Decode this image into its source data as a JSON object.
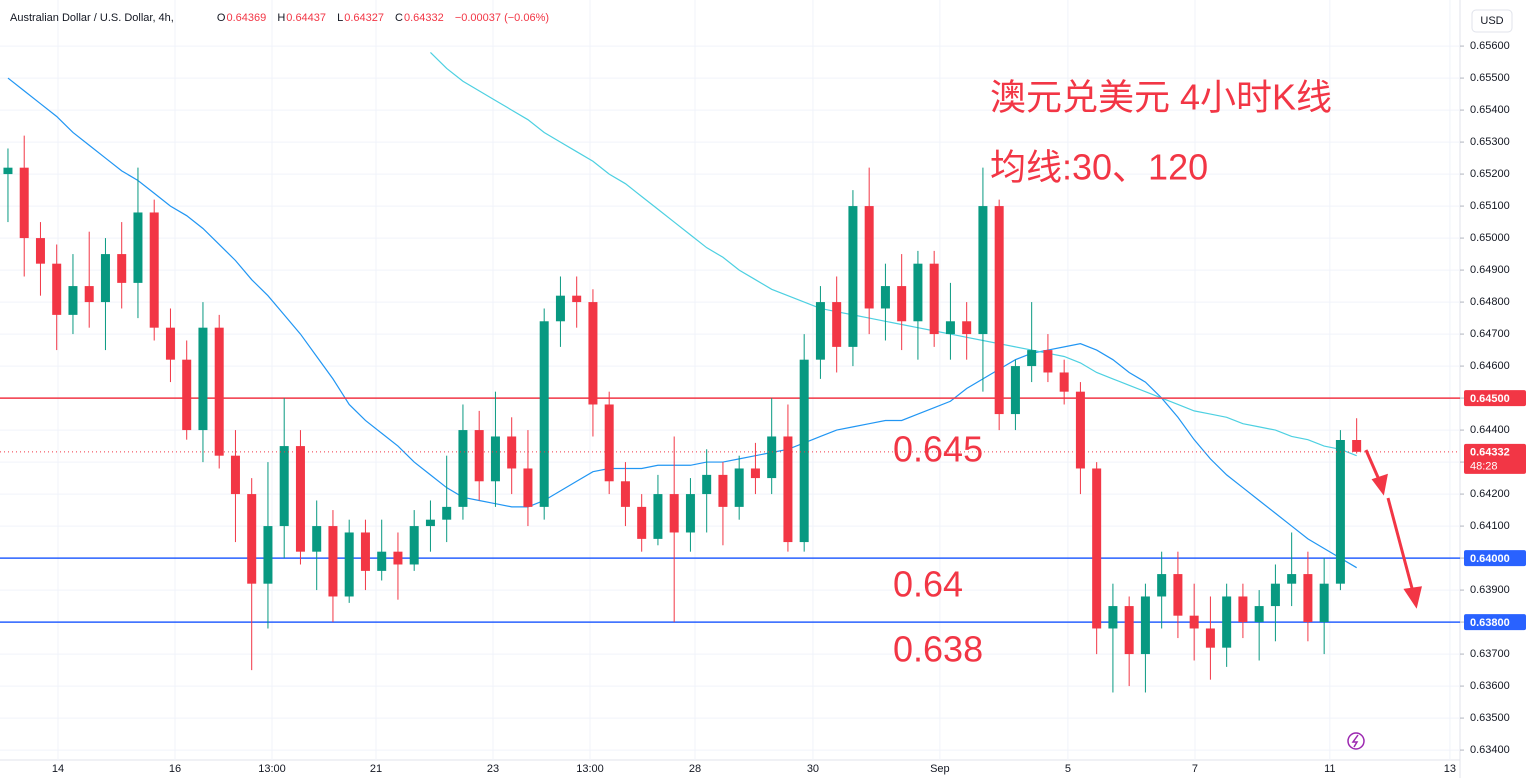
{
  "chart_data": {
    "type": "candlestick",
    "title": "Australian Dollar / U.S. Dollar, 4h,",
    "currency": "USD",
    "header": {
      "open_label": "O",
      "open": "0.64369",
      "high_label": "H",
      "high": "0.64437",
      "low_label": "L",
      "low": "0.64327",
      "close_label": "C",
      "close": "0.64332",
      "change": "−0.00037 (−0.06%)"
    },
    "annotations": [
      "澳元兑美元 4小时K线",
      "均线:30、120",
      "0.645",
      "0.64",
      "0.638"
    ],
    "up_color": "#089981",
    "down_color": "#f23645",
    "open": [
      0.652,
      0.6522,
      0.65,
      0.6492,
      0.6476,
      0.6485,
      0.648,
      0.6495,
      0.6486,
      0.6508,
      0.6472,
      0.6462,
      0.644,
      0.6472,
      0.6432,
      0.642,
      0.6392,
      0.641,
      0.6435,
      0.6402,
      0.641,
      0.6388,
      0.6408,
      0.6396,
      0.6402,
      0.6398,
      0.641,
      0.6412,
      0.6416,
      0.644,
      0.6424,
      0.6438,
      0.6428,
      0.6416,
      0.6474,
      0.6482,
      0.648,
      0.6448,
      0.6424,
      0.6416,
      0.6406,
      0.642,
      0.6408,
      0.642,
      0.6426,
      0.6416,
      0.6428,
      0.6425,
      0.6438,
      0.6405,
      0.6462,
      0.648,
      0.6466,
      0.651,
      0.6478,
      0.6485,
      0.6474,
      0.6492,
      0.647,
      0.6474,
      0.647,
      0.651,
      0.6445,
      0.646,
      0.6465,
      0.6458,
      0.6452,
      0.6428,
      0.6378,
      0.6385,
      0.637,
      0.6388,
      0.6395,
      0.6382,
      0.6378,
      0.6372,
      0.6388,
      0.638,
      0.6385,
      0.6392,
      0.6395,
      0.638,
      0.6392,
      0.64369
    ],
    "high": [
      0.6528,
      0.6532,
      0.6505,
      0.6498,
      0.6495,
      0.6502,
      0.65,
      0.6505,
      0.6522,
      0.6512,
      0.6478,
      0.6468,
      0.648,
      0.6476,
      0.644,
      0.6425,
      0.643,
      0.645,
      0.644,
      0.6418,
      0.6415,
      0.6412,
      0.6412,
      0.6412,
      0.6408,
      0.6415,
      0.6418,
      0.6432,
      0.6448,
      0.6446,
      0.6452,
      0.6444,
      0.644,
      0.6478,
      0.6488,
      0.6488,
      0.6484,
      0.6452,
      0.643,
      0.642,
      0.6426,
      0.6438,
      0.6425,
      0.6434,
      0.643,
      0.6432,
      0.6436,
      0.645,
      0.6448,
      0.647,
      0.6485,
      0.6488,
      0.6515,
      0.6522,
      0.6492,
      0.6495,
      0.6496,
      0.6496,
      0.6486,
      0.648,
      0.6522,
      0.6512,
      0.6462,
      0.648,
      0.647,
      0.6462,
      0.6455,
      0.643,
      0.6392,
      0.6388,
      0.6392,
      0.6402,
      0.6402,
      0.6392,
      0.6388,
      0.6392,
      0.6392,
      0.639,
      0.6398,
      0.6408,
      0.6402,
      0.64,
      0.644,
      0.64437
    ],
    "low": [
      0.6505,
      0.6488,
      0.6482,
      0.6465,
      0.647,
      0.6472,
      0.6465,
      0.6478,
      0.6475,
      0.6468,
      0.6455,
      0.6437,
      0.643,
      0.6428,
      0.6405,
      0.6365,
      0.6378,
      0.64,
      0.6398,
      0.639,
      0.638,
      0.6386,
      0.639,
      0.6393,
      0.6387,
      0.6396,
      0.6402,
      0.6405,
      0.6412,
      0.6418,
      0.6416,
      0.642,
      0.641,
      0.6412,
      0.6466,
      0.6472,
      0.6438,
      0.642,
      0.641,
      0.6402,
      0.6404,
      0.638,
      0.6402,
      0.6408,
      0.6404,
      0.6412,
      0.642,
      0.642,
      0.6402,
      0.6402,
      0.6456,
      0.6458,
      0.646,
      0.647,
      0.6468,
      0.6465,
      0.6462,
      0.6466,
      0.6462,
      0.6462,
      0.6452,
      0.644,
      0.644,
      0.6455,
      0.6455,
      0.6448,
      0.642,
      0.637,
      0.6358,
      0.636,
      0.6358,
      0.6378,
      0.6375,
      0.6368,
      0.6362,
      0.6366,
      0.6375,
      0.6368,
      0.6374,
      0.6385,
      0.6374,
      0.637,
      0.639,
      0.64327
    ],
    "close": [
      0.6522,
      0.65,
      0.6492,
      0.6476,
      0.6485,
      0.648,
      0.6495,
      0.6486,
      0.6508,
      0.6472,
      0.6462,
      0.644,
      0.6472,
      0.6432,
      0.642,
      0.6392,
      0.641,
      0.6435,
      0.6402,
      0.641,
      0.6388,
      0.6408,
      0.6396,
      0.6402,
      0.6398,
      0.641,
      0.6412,
      0.6416,
      0.644,
      0.6424,
      0.6438,
      0.6428,
      0.6416,
      0.6474,
      0.6482,
      0.648,
      0.6448,
      0.6424,
      0.6416,
      0.6406,
      0.642,
      0.6408,
      0.642,
      0.6426,
      0.6416,
      0.6428,
      0.6425,
      0.6438,
      0.6405,
      0.6462,
      0.648,
      0.6466,
      0.651,
      0.6478,
      0.6485,
      0.6474,
      0.6492,
      0.647,
      0.6474,
      0.647,
      0.651,
      0.6445,
      0.646,
      0.6465,
      0.6458,
      0.6452,
      0.6428,
      0.6378,
      0.6385,
      0.637,
      0.6388,
      0.6395,
      0.6382,
      0.6378,
      0.6372,
      0.6388,
      0.638,
      0.6385,
      0.6392,
      0.6395,
      0.638,
      0.6392,
      0.64369,
      0.64332
    ],
    "series": [
      {
        "color": "#2196f3",
        "values": [
          0.655,
          0.6546,
          0.6542,
          0.6538,
          0.6533,
          0.6529,
          0.6525,
          0.6521,
          0.6518,
          0.6514,
          0.651,
          0.6507,
          0.6503,
          0.6498,
          0.6493,
          0.6487,
          0.6482,
          0.6476,
          0.647,
          0.6463,
          0.6456,
          0.6448,
          0.6443,
          0.6439,
          0.6435,
          0.643,
          0.6426,
          0.6422,
          0.6419,
          0.6418,
          0.6417,
          0.6416,
          0.6416,
          0.6418,
          0.6421,
          0.6424,
          0.6427,
          0.6428,
          0.6428,
          0.6428,
          0.6429,
          0.6429,
          0.6429,
          0.643,
          0.643,
          0.6431,
          0.6432,
          0.6433,
          0.6434,
          0.6436,
          0.6438,
          0.644,
          0.6441,
          0.6442,
          0.6443,
          0.6443,
          0.6445,
          0.6447,
          0.6449,
          0.6453,
          0.6456,
          0.6459,
          0.6462,
          0.6464,
          0.6465,
          0.6466,
          0.6467,
          0.6465,
          0.6462,
          0.6458,
          0.6455,
          0.645,
          0.6444,
          0.6437,
          0.6431,
          0.6426,
          0.6422,
          0.6418,
          0.6414,
          0.641,
          0.6406,
          0.6403,
          0.64,
          0.6397
        ]
      },
      {
        "color": "#4dd0e1",
        "values": [
          null,
          null,
          null,
          null,
          null,
          null,
          null,
          null,
          null,
          null,
          null,
          null,
          null,
          null,
          null,
          null,
          null,
          null,
          null,
          null,
          null,
          null,
          null,
          null,
          null,
          null,
          0.6558,
          0.6553,
          0.6549,
          0.6546,
          0.6543,
          0.654,
          0.6537,
          0.6533,
          0.653,
          0.6527,
          0.6524,
          0.652,
          0.6517,
          0.6513,
          0.6509,
          0.6505,
          0.6501,
          0.6497,
          0.6494,
          0.649,
          0.6487,
          0.6484,
          0.6482,
          0.648,
          0.6478,
          0.6477,
          0.6476,
          0.6475,
          0.6474,
          0.6473,
          0.6472,
          0.6471,
          0.647,
          0.6469,
          0.6468,
          0.6467,
          0.6466,
          0.6465,
          0.6464,
          0.6463,
          0.6461,
          0.6458,
          0.6456,
          0.6454,
          0.6452,
          0.645,
          0.6448,
          0.6446,
          0.6445,
          0.6444,
          0.6442,
          0.6441,
          0.644,
          0.6438,
          0.6437,
          0.6435,
          0.6434,
          0.6432
        ]
      }
    ],
    "price_lines": [
      {
        "value": 0.645,
        "label": "0.64500",
        "color": "#f23645"
      },
      {
        "value": 0.64,
        "label": "0.64000",
        "color": "#2962ff"
      },
      {
        "value": 0.638,
        "label": "0.63800",
        "color": "#2962ff"
      }
    ],
    "last_price": {
      "value": 0.64332,
      "label": "0.64332",
      "countdown": "48:28"
    },
    "xlim": [
      -0.49,
      89.36
    ],
    "xticks": [
      {
        "value": 3.08,
        "label": "14"
      },
      {
        "value": 10.28,
        "label": "16"
      },
      {
        "value": 16.25,
        "label": "13:00"
      },
      {
        "value": 22.65,
        "label": "21"
      },
      {
        "value": 29.85,
        "label": "23"
      },
      {
        "value": 35.82,
        "label": "13:00"
      },
      {
        "value": 42.28,
        "label": "28"
      },
      {
        "value": 49.54,
        "label": "30"
      },
      {
        "value": 57.35,
        "label": "Sep"
      },
      {
        "value": 65.23,
        "label": "5"
      },
      {
        "value": 73.05,
        "label": "7"
      },
      {
        "value": 81.35,
        "label": "11"
      },
      {
        "value": 88.74,
        "label": "13"
      }
    ],
    "ylim": [
      0.63369,
      0.65744
    ],
    "yticks": [
      {
        "value": 0.634,
        "label": "0.63400"
      },
      {
        "value": 0.635,
        "label": "0.63500"
      },
      {
        "value": 0.636,
        "label": "0.63600"
      },
      {
        "value": 0.637,
        "label": "0.63700"
      },
      {
        "value": 0.638,
        "label": "0.63800"
      },
      {
        "value": 0.639,
        "label": "0.63900"
      },
      {
        "value": 0.64,
        "label": "0.64000"
      },
      {
        "value": 0.641,
        "label": "0.64100"
      },
      {
        "value": 0.642,
        "label": "0.64200"
      },
      {
        "value": 0.643,
        "label": "0.64300"
      },
      {
        "value": 0.644,
        "label": "0.64400"
      },
      {
        "value": 0.645,
        "label": "0.64500"
      },
      {
        "value": 0.646,
        "label": "0.64600"
      },
      {
        "value": 0.647,
        "label": "0.64700"
      },
      {
        "value": 0.648,
        "label": "0.64800"
      },
      {
        "value": 0.649,
        "label": "0.64900"
      },
      {
        "value": 0.65,
        "label": "0.65000"
      },
      {
        "value": 0.651,
        "label": "0.65100"
      },
      {
        "value": 0.652,
        "label": "0.65200"
      },
      {
        "value": 0.653,
        "label": "0.65300"
      },
      {
        "value": 0.654,
        "label": "0.65400"
      },
      {
        "value": 0.655,
        "label": "0.65500"
      },
      {
        "value": 0.656,
        "label": "0.65600"
      }
    ],
    "grid": true
  }
}
